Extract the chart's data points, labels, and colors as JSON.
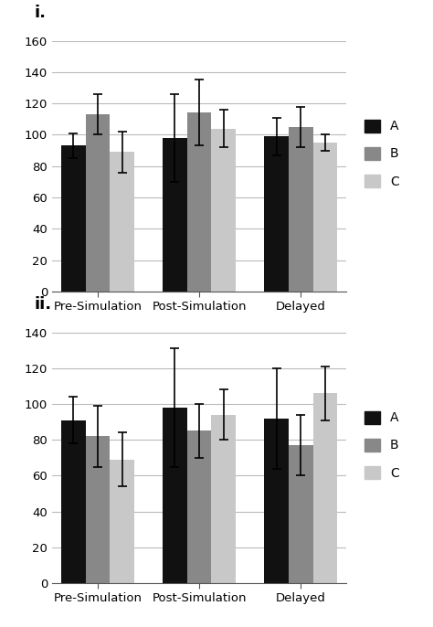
{
  "chart_i": {
    "label": "i.",
    "categories": [
      "Pre-Simulation",
      "Post-Simulation",
      "Delayed"
    ],
    "series": {
      "A": {
        "values": [
          93,
          98,
          99
        ],
        "errors": [
          8,
          28,
          12
        ],
        "color": "#111111"
      },
      "B": {
        "values": [
          113,
          114,
          105
        ],
        "errors": [
          13,
          21,
          13
        ],
        "color": "#888888"
      },
      "C": {
        "values": [
          89,
          104,
          95
        ],
        "errors": [
          13,
          12,
          5
        ],
        "color": "#c8c8c8"
      }
    },
    "ylim": [
      0,
      160
    ],
    "yticks": [
      0,
      20,
      40,
      60,
      80,
      100,
      120,
      140,
      160
    ]
  },
  "chart_ii": {
    "label": "ii.",
    "categories": [
      "Pre-Simulation",
      "Post-Simulation",
      "Delayed"
    ],
    "series": {
      "A": {
        "values": [
          91,
          98,
          92
        ],
        "errors": [
          13,
          33,
          28
        ],
        "color": "#111111"
      },
      "B": {
        "values": [
          82,
          85,
          77
        ],
        "errors": [
          17,
          15,
          17
        ],
        "color": "#888888"
      },
      "C": {
        "values": [
          69,
          94,
          106
        ],
        "errors": [
          15,
          14,
          15
        ],
        "color": "#c8c8c8"
      }
    },
    "ylim": [
      0,
      140
    ],
    "yticks": [
      0,
      20,
      40,
      60,
      80,
      100,
      120,
      140
    ]
  },
  "legend_labels": [
    "A",
    "B",
    "C"
  ],
  "legend_colors": [
    "#111111",
    "#888888",
    "#c8c8c8"
  ],
  "bar_width": 0.24,
  "background_color": "#ffffff",
  "grid_color": "#bbbbbb",
  "tick_fontsize": 9.5,
  "category_fontsize": 9.5,
  "label_fontsize": 13
}
